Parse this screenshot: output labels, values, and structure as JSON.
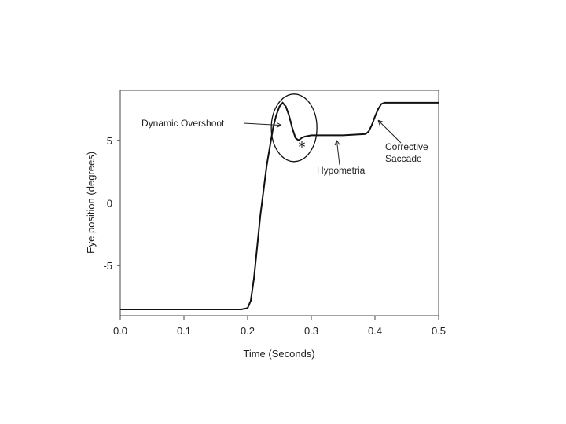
{
  "chart_data": {
    "type": "line",
    "title": "",
    "xlabel": "Time (Seconds)",
    "ylabel": "Eye position (degrees)",
    "xlim": [
      0.0,
      0.5
    ],
    "ylim": [
      -9,
      9
    ],
    "grid": false,
    "x_ticks": [
      0.0,
      0.1,
      0.2,
      0.3,
      0.4,
      0.5
    ],
    "x_tick_labels": [
      "0.0",
      "0.1",
      "0.2",
      "0.3",
      "0.4",
      "0.5"
    ],
    "y_ticks": [
      5,
      0,
      -5
    ],
    "y_tick_labels": [
      "5",
      "0",
      "-5"
    ],
    "series": [
      {
        "x": [
          0.0,
          0.19,
          0.2,
          0.205,
          0.21,
          0.22,
          0.23,
          0.24,
          0.245,
          0.25,
          0.255,
          0.26,
          0.265,
          0.27,
          0.275,
          0.28,
          0.285,
          0.29,
          0.3,
          0.35,
          0.385,
          0.39,
          0.395,
          0.4,
          0.405,
          0.41,
          0.415,
          0.42,
          0.43,
          0.5
        ],
        "y": [
          -8.5,
          -8.5,
          -8.4,
          -7.8,
          -6.0,
          -1.0,
          3.0,
          6.0,
          7.0,
          7.7,
          8.0,
          7.7,
          7.0,
          6.0,
          5.2,
          5.0,
          5.2,
          5.3,
          5.4,
          5.4,
          5.5,
          5.7,
          6.2,
          6.9,
          7.5,
          7.9,
          8.0,
          8.0,
          8.0,
          8.0
        ]
      }
    ],
    "annotations": [
      {
        "text": "Dynamic Overshoot",
        "target": [
          0.253,
          6.2
        ]
      },
      {
        "text": "Hypometria",
        "target": [
          0.34,
          5.0
        ]
      },
      {
        "text": "Corrective",
        "target": [
          0.405,
          6.6
        ]
      },
      {
        "text": "Saccade",
        "target": [
          0.405,
          6.6
        ]
      },
      {
        "text": "*",
        "target": [
          0.28,
          4.6
        ]
      }
    ],
    "highlight_ellipse": {
      "x": 0.273,
      "y": 6.0
    }
  }
}
